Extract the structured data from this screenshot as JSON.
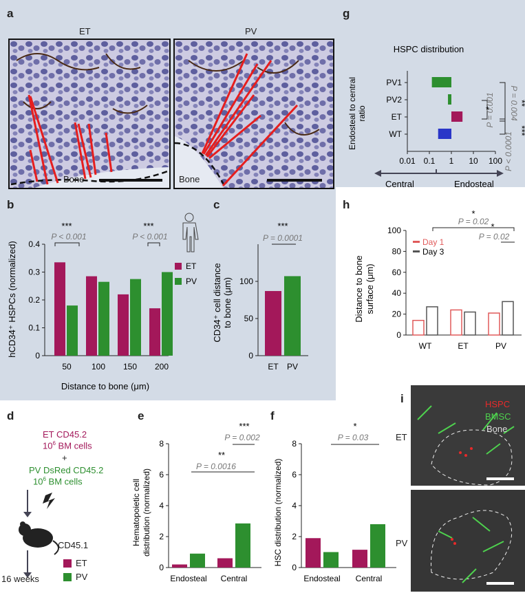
{
  "panels": {
    "a": "a",
    "b": "b",
    "c": "c",
    "d": "d",
    "e": "e",
    "f": "f",
    "g": "g",
    "h": "h",
    "i": "i"
  },
  "micro_a": {
    "left_title": "ET",
    "right_title": "PV",
    "left_bone": "Bone",
    "right_bone": "Bone"
  },
  "colors": {
    "et": "#a3185a",
    "pv": "#2d8f2f",
    "wt_blue": "#2a36c8",
    "red_line": "#e61e1e",
    "day1": "#e05a5a",
    "day3": "#555555",
    "bg_panel": "#d3dbe6"
  },
  "chart_data": [
    {
      "id": "b",
      "type": "bar",
      "ylabel": "hCD34⁺ HSPCs (normalized)",
      "xlabel": "Distance to bone (μm)",
      "categories": [
        "50",
        "100",
        "150",
        "200"
      ],
      "ylim": [
        0,
        0.4
      ],
      "yticks": [
        "0",
        "0.1",
        "0.2",
        "0.3",
        "0.4"
      ],
      "legend": [
        "ET",
        "PV"
      ],
      "series": [
        {
          "name": "ET",
          "values": [
            0.335,
            0.285,
            0.22,
            0.17
          ]
        },
        {
          "name": "PV",
          "values": [
            0.18,
            0.265,
            0.275,
            0.3
          ]
        }
      ],
      "annotations": [
        {
          "stars": "***",
          "p": "P < 0.001",
          "at": "50"
        },
        {
          "stars": "***",
          "p": "P < 0.001",
          "at": "200"
        }
      ]
    },
    {
      "id": "c",
      "type": "bar",
      "ylabel": "CD34⁺ cell distance to bone (μm)",
      "ylabel_lines": [
        "CD34⁺ cell distance",
        "to bone (μm)"
      ],
      "categories": [
        "ET",
        "PV"
      ],
      "values": [
        87,
        107
      ],
      "ylim": [
        0,
        150
      ],
      "yticks": [
        "0",
        "50",
        "100"
      ],
      "annotations": [
        {
          "stars": "***",
          "p": "P = 0.0001"
        }
      ]
    },
    {
      "id": "e",
      "type": "bar",
      "ylabel": "Hematopoietic cell distribution (normalized)",
      "ylabel_lines": [
        "Hematopoietic cell",
        "distribution (normalized)"
      ],
      "groups": [
        "Endosteal",
        "Central"
      ],
      "ylim": [
        0,
        8
      ],
      "yticks": [
        "0",
        "2",
        "4",
        "6",
        "8"
      ],
      "series": [
        {
          "name": "ET",
          "values": [
            0.2,
            0.6
          ]
        },
        {
          "name": "PV",
          "values": [
            0.9,
            2.85
          ]
        }
      ],
      "annotations": [
        {
          "stars": "***",
          "p": "P = 0.002"
        },
        {
          "stars": "**",
          "p": "P = 0.0016"
        }
      ]
    },
    {
      "id": "f",
      "type": "bar",
      "ylabel": "HSC distribution (normalized)",
      "groups": [
        "Endosteal",
        "Central"
      ],
      "ylim": [
        0,
        8
      ],
      "yticks": [
        "0",
        "2",
        "4",
        "6",
        "8"
      ],
      "series": [
        {
          "name": "ET",
          "values": [
            1.9,
            1.15
          ]
        },
        {
          "name": "PV",
          "values": [
            1.0,
            2.8
          ]
        }
      ],
      "annotations": [
        {
          "stars": "*",
          "p": "P = 0.03"
        }
      ]
    },
    {
      "id": "g",
      "type": "bar",
      "title": "HSPC distribution",
      "ylabel": "Endosteal to central ratio",
      "ylabel_lines": [
        "Endosteal to central",
        "ratio"
      ],
      "categories": [
        "PV1",
        "PV2",
        "ET",
        "WT"
      ],
      "values": [
        0.13,
        0.7,
        3.2,
        0.25
      ],
      "xscale": "log",
      "xticks": [
        "0.01",
        "0.1",
        "1",
        "10",
        "100"
      ],
      "arrow_left": "Central",
      "arrow_right": "Endosteal",
      "annotations": [
        {
          "stars": "**",
          "p": "P = 0.004"
        },
        {
          "stars": "*",
          "p": "P = 0.001"
        },
        {
          "stars": "***",
          "p": "P < 0.0001"
        }
      ]
    },
    {
      "id": "h",
      "type": "bar",
      "ylabel": "Distance to bone surface (μm)",
      "ylabel_lines": [
        "Distance to bone",
        "surface (μm)"
      ],
      "groups": [
        "WT",
        "ET",
        "PV"
      ],
      "ylim": [
        0,
        100
      ],
      "yticks": [
        "0",
        "20",
        "40",
        "60",
        "80",
        "100"
      ],
      "legend": [
        "Day 1",
        "Day 3"
      ],
      "series": [
        {
          "name": "Day 1",
          "values": [
            14,
            24,
            21
          ]
        },
        {
          "name": "Day 3",
          "values": [
            27,
            22,
            32
          ]
        }
      ],
      "annotations": [
        {
          "stars": "*",
          "p": "P = 0.02"
        },
        {
          "stars": "*",
          "p": "P = 0.02"
        }
      ]
    }
  ],
  "d": {
    "line1": "ET CD45.2",
    "line2_base": "10",
    "line2_exp": "6",
    "line2_rest": " BM cells",
    "plus": "+",
    "line3": "PV DsRed CD45.2",
    "line4_base": "10",
    "line4_exp": "6",
    "line4_rest": " BM cells",
    "mouse": "CD45.1",
    "weeks": "16 weeks",
    "legend": [
      "ET",
      "PV"
    ]
  },
  "i": {
    "labels": {
      "hspc": "HSPC",
      "bmsc": "BMSC",
      "bone": "Bone"
    },
    "top": "ET",
    "bottom": "PV"
  }
}
